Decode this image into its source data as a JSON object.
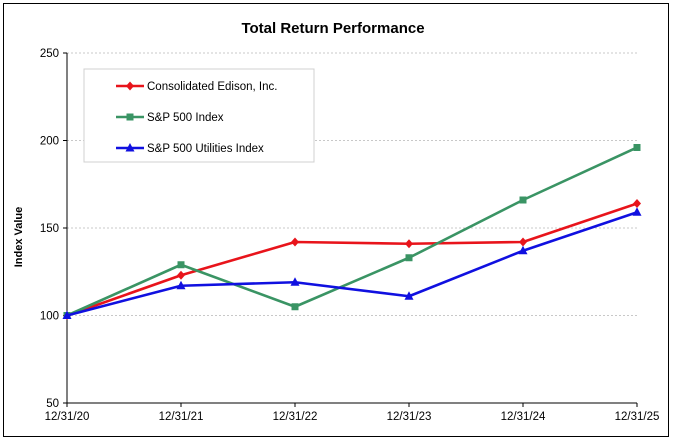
{
  "chart_data": {
    "type": "line",
    "title": "Total Return Performance",
    "xlabel": "",
    "ylabel": "Index Value",
    "categories": [
      "12/31/20",
      "12/31/21",
      "12/31/22",
      "12/31/23",
      "12/31/24",
      "12/31/25"
    ],
    "ylim": [
      50,
      250
    ],
    "yticks": [
      50,
      100,
      150,
      200,
      250
    ],
    "grid": "horizontal",
    "legend_position": "top-left",
    "series": [
      {
        "name": "Consolidated Edison, Inc.",
        "color": "#e8141b",
        "marker": "diamond",
        "values": [
          100,
          123,
          142,
          141,
          142,
          164
        ]
      },
      {
        "name": "S&P 500 Index",
        "color": "#3a9464",
        "marker": "square",
        "values": [
          100,
          129,
          105,
          133,
          166,
          196
        ]
      },
      {
        "name": "S&P 500 Utilities Index",
        "color": "#1010e0",
        "marker": "triangle",
        "values": [
          100,
          117,
          119,
          111,
          137,
          159
        ]
      }
    ]
  }
}
